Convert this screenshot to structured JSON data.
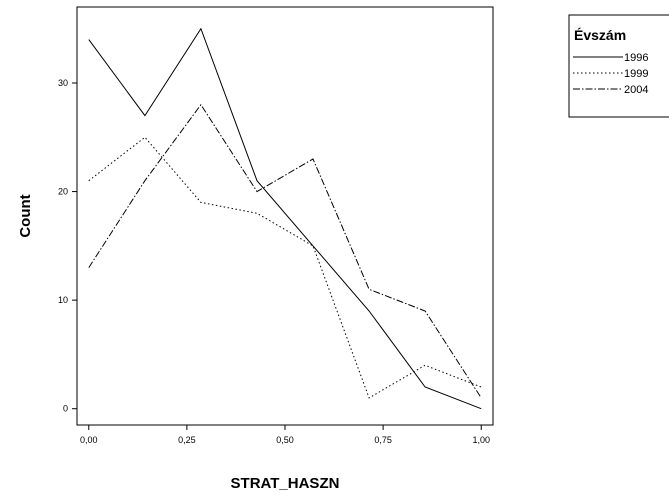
{
  "chart_data": {
    "type": "line",
    "xlabel": "STRAT_HASZN",
    "ylabel": "Count",
    "x": [
      0,
      0.1429,
      0.2857,
      0.4286,
      0.5714,
      0.7143,
      0.8571,
      1.0
    ],
    "xlim": [
      -0.03,
      1.03
    ],
    "ylim": [
      -1.5,
      37
    ],
    "x_ticks": [
      0,
      0.25,
      0.5,
      0.75,
      1.0
    ],
    "x_tick_labels": [
      "0,00",
      "0,25",
      "0,50",
      "0,75",
      "1,00"
    ],
    "y_ticks": [
      0,
      10,
      20,
      30
    ],
    "y_tick_labels": [
      "0",
      "10",
      "20",
      "30"
    ],
    "grid": false,
    "legend": {
      "title": "Évszám",
      "position": "top-right"
    },
    "series": [
      {
        "name": "1996",
        "style": "solid",
        "color": "#000000",
        "values": [
          34,
          27,
          35,
          21,
          15,
          9,
          2,
          0
        ]
      },
      {
        "name": "1999",
        "style": "dotted",
        "color": "#000000",
        "values": [
          21,
          25,
          19,
          18,
          15,
          1,
          4,
          2
        ]
      },
      {
        "name": "2004",
        "style": "dashdot",
        "color": "#000000",
        "values": [
          13,
          21,
          28,
          20,
          23,
          11,
          9,
          1
        ]
      }
    ]
  }
}
